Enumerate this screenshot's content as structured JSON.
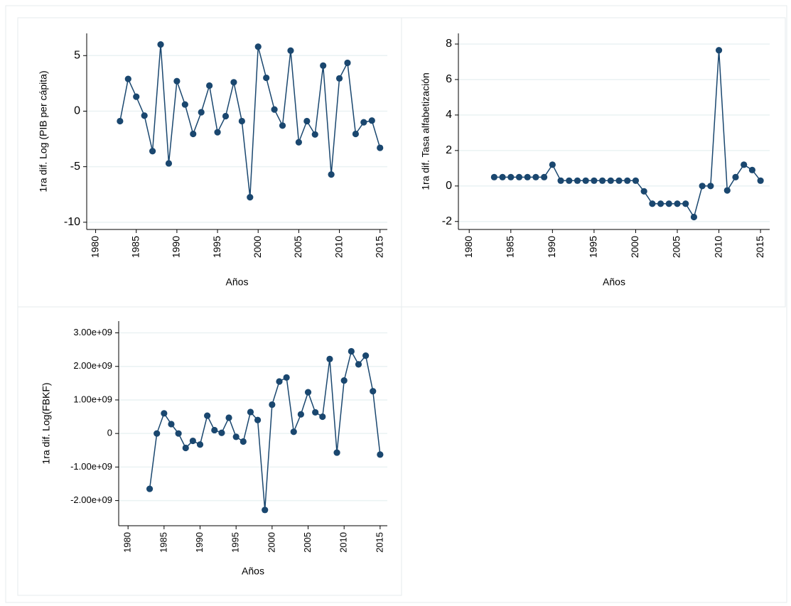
{
  "chart_data": [
    {
      "type": "line",
      "y_label": "1ra dif. Log (PIB per cápita)",
      "x_label": "Años",
      "x": [
        1983,
        1984,
        1985,
        1986,
        1987,
        1988,
        1989,
        1990,
        1991,
        1992,
        1993,
        1994,
        1995,
        1996,
        1997,
        1998,
        1999,
        2000,
        2001,
        2002,
        2003,
        2004,
        2005,
        2006,
        2007,
        2008,
        2009,
        2010,
        2011,
        2012,
        2013,
        2014,
        2015
      ],
      "values": [
        -0.9,
        2.9,
        1.3,
        -0.4,
        -3.6,
        6.0,
        -4.7,
        2.7,
        0.6,
        -2.05,
        -0.1,
        2.3,
        -1.9,
        -0.45,
        2.6,
        -0.9,
        -7.75,
        5.8,
        3.0,
        0.15,
        -1.3,
        5.45,
        -2.8,
        -0.9,
        -2.1,
        4.1,
        -5.7,
        2.95,
        4.35,
        -2.05,
        -1.0,
        -0.85,
        -3.3
      ],
      "color": "#1a476f",
      "markers": true,
      "grid": true,
      "xlim": [
        1978.9,
        2015.9
      ],
      "xticks": [
        1980,
        1985,
        1990,
        1995,
        2000,
        2005,
        2010,
        2015
      ],
      "ylim": [
        -10.65,
        7.0
      ],
      "yticks": [
        -10,
        -5,
        0,
        5
      ]
    },
    {
      "type": "line",
      "y_label": "1ra dif. Tasa alfabetización",
      "x_label": "Años",
      "x": [
        1983,
        1984,
        1985,
        1986,
        1987,
        1988,
        1989,
        1990,
        1991,
        1992,
        1993,
        1994,
        1995,
        1996,
        1997,
        1998,
        1999,
        2000,
        2001,
        2002,
        2003,
        2004,
        2005,
        2006,
        2007,
        2008,
        2009,
        2010,
        2011,
        2012,
        2013,
        2014,
        2015
      ],
      "values": [
        0.5,
        0.5,
        0.5,
        0.5,
        0.5,
        0.5,
        0.5,
        1.2,
        0.3,
        0.3,
        0.3,
        0.3,
        0.3,
        0.3,
        0.3,
        0.3,
        0.3,
        0.3,
        -0.3,
        -1.0,
        -1.0,
        -1.0,
        -1.0,
        -1.0,
        -1.75,
        0,
        0,
        7.65,
        -0.25,
        0.5,
        1.2,
        0.9,
        0.3
      ],
      "color": "#1a476f",
      "markers": true,
      "grid": true,
      "xlim": [
        1978.7,
        2016.1
      ],
      "xticks": [
        1980,
        1985,
        1990,
        1995,
        2000,
        2005,
        2010,
        2015
      ],
      "ylim": [
        -2.45,
        8.6
      ],
      "yticks": [
        -2,
        0,
        2,
        4,
        6,
        8
      ]
    },
    {
      "type": "line",
      "y_label": "1ra dif. Log(FBKF)",
      "x_label": "Años",
      "x": [
        1983,
        1984,
        1985,
        1986,
        1987,
        1988,
        1989,
        1990,
        1991,
        1992,
        1993,
        1994,
        1995,
        1996,
        1997,
        1998,
        1999,
        2000,
        2001,
        2002,
        2003,
        2004,
        2005,
        2006,
        2007,
        2008,
        2009,
        2010,
        2011,
        2012,
        2013,
        2014,
        2015
      ],
      "values": [
        -1650000000,
        0,
        600000000,
        280000000,
        0,
        -430000000,
        -220000000,
        -330000000,
        530000000,
        100000000,
        20000000,
        470000000,
        -100000000,
        -240000000,
        640000000,
        400000000,
        -2280000000,
        860000000,
        1550000000,
        1670000000,
        50000000,
        570000000,
        1230000000,
        630000000,
        500000000,
        2220000000,
        -570000000,
        1580000000,
        2450000000,
        2060000000,
        2320000000,
        1260000000,
        -630000000
      ],
      "color": "#1a476f",
      "markers": true,
      "grid": true,
      "xlim": [
        1978.7,
        2016.0
      ],
      "xticks": [
        1980,
        1985,
        1990,
        1995,
        2000,
        2005,
        2010,
        2015
      ],
      "ylim": [
        -2750000000,
        3350000000
      ],
      "yticks": [
        {
          "value": -2000000000,
          "label": "-2.00e+09"
        },
        {
          "value": -1000000000,
          "label": "-1.00e+09"
        },
        0,
        {
          "value": 1000000000,
          "label": "1.00e+09"
        },
        {
          "value": 2000000000,
          "label": "2.00e+09"
        },
        {
          "value": 3000000000,
          "label": "3.00e+09"
        }
      ]
    }
  ]
}
